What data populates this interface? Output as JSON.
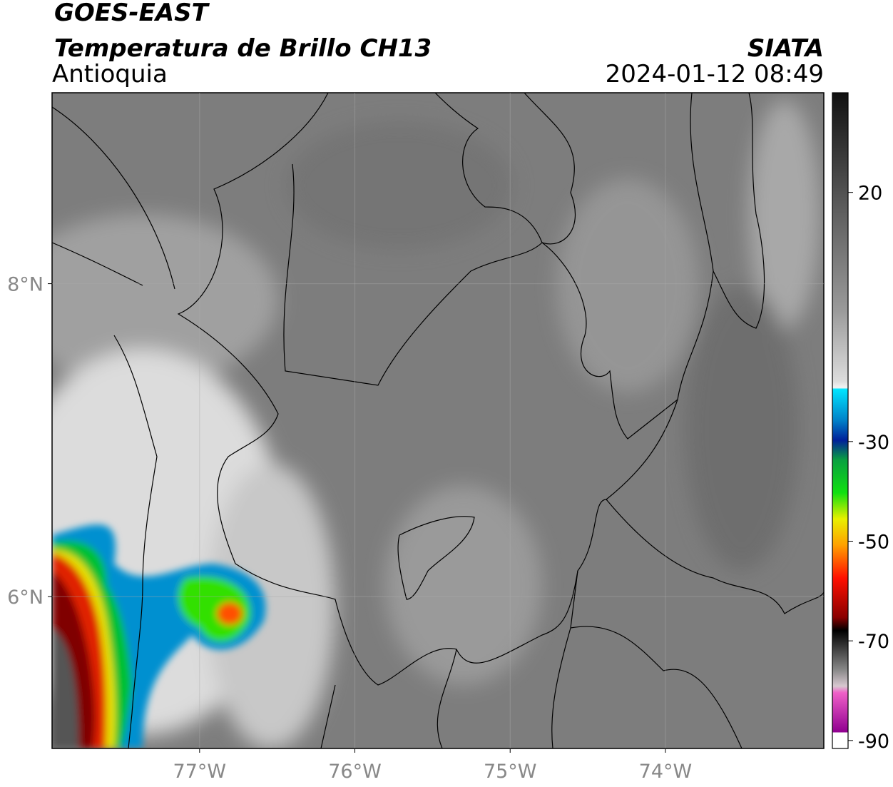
{
  "header": {
    "title": "GOES-EAST",
    "subtitle": "Temperatura de Brillo CH13",
    "region": "Antioquia",
    "source": "SIATA",
    "datetime": "2024-01-12 08:49"
  },
  "map": {
    "xlim": [
      -77.95,
      -72.98
    ],
    "ylim": [
      5.03,
      9.22
    ],
    "xticks": [
      {
        "value": -77,
        "label": "77°W"
      },
      {
        "value": -76,
        "label": "76°W"
      },
      {
        "value": -75,
        "label": "75°W"
      },
      {
        "value": -74,
        "label": "74°W"
      }
    ],
    "yticks": [
      {
        "value": 8,
        "label": "8°N"
      },
      {
        "value": 6,
        "label": "6°N"
      }
    ],
    "grid": true
  },
  "colorbar": {
    "lim": [
      -91.6,
      40
    ],
    "ticks": [
      20,
      -30,
      -50,
      -70,
      -90
    ]
  }
}
